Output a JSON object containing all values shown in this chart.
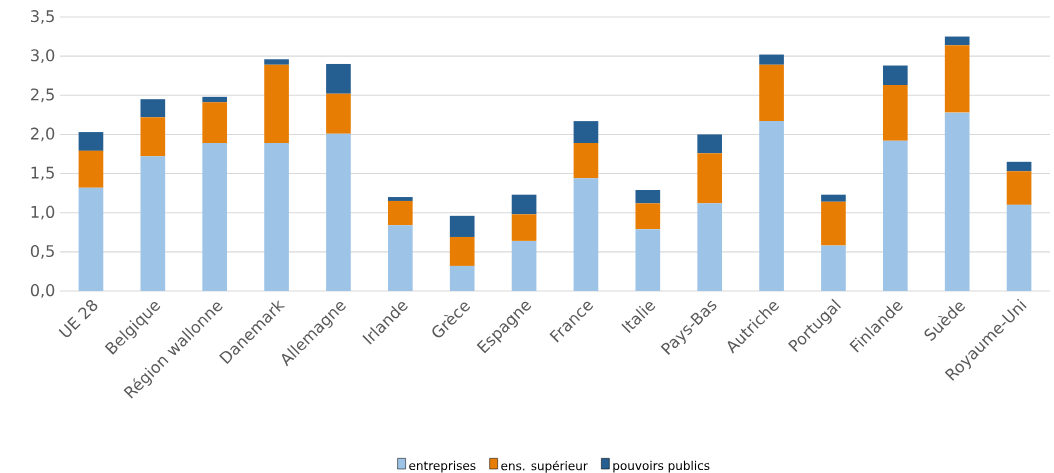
{
  "chart_data": {
    "type": "bar",
    "stacked": true,
    "categories": [
      "UE 28",
      "Belgique",
      "Région wallonne",
      "Danemark",
      "Allemagne",
      "Irlande",
      "Grèce",
      "Espagne",
      "France",
      "Italie",
      "Pays-Bas",
      "Autriche",
      "Portugal",
      "Finlande",
      "Suède",
      "Royaume-Uni"
    ],
    "series": [
      {
        "name": "entreprises",
        "color": "#9dc3e6",
        "values": [
          1.32,
          1.72,
          1.89,
          1.89,
          2.01,
          0.84,
          0.32,
          0.64,
          1.44,
          0.79,
          1.12,
          2.17,
          0.58,
          1.92,
          2.28,
          1.1
        ]
      },
      {
        "name": "ens. supérieur",
        "color": "#e87d03",
        "values": [
          0.47,
          0.5,
          0.52,
          1.0,
          0.51,
          0.31,
          0.37,
          0.34,
          0.45,
          0.33,
          0.64,
          0.72,
          0.56,
          0.71,
          0.86,
          0.43
        ]
      },
      {
        "name": "pouvoirs publics",
        "color": "#255e91",
        "values": [
          0.24,
          0.23,
          0.07,
          0.07,
          0.38,
          0.05,
          0.27,
          0.25,
          0.28,
          0.17,
          0.24,
          0.13,
          0.09,
          0.25,
          0.11,
          0.12
        ]
      }
    ],
    "ylim": [
      0,
      3.5
    ],
    "yticks": [
      {
        "value": 0,
        "label": "0,0"
      },
      {
        "value": 0.5,
        "label": "0,5"
      },
      {
        "value": 1,
        "label": "1,0"
      },
      {
        "value": 1.5,
        "label": "1,5"
      },
      {
        "value": 2,
        "label": "2,0"
      },
      {
        "value": 2.5,
        "label": "2,5"
      },
      {
        "value": 3,
        "label": "3,0"
      },
      {
        "value": 3.5,
        "label": "3,5"
      }
    ],
    "grid": "y",
    "legend": "bottom"
  }
}
